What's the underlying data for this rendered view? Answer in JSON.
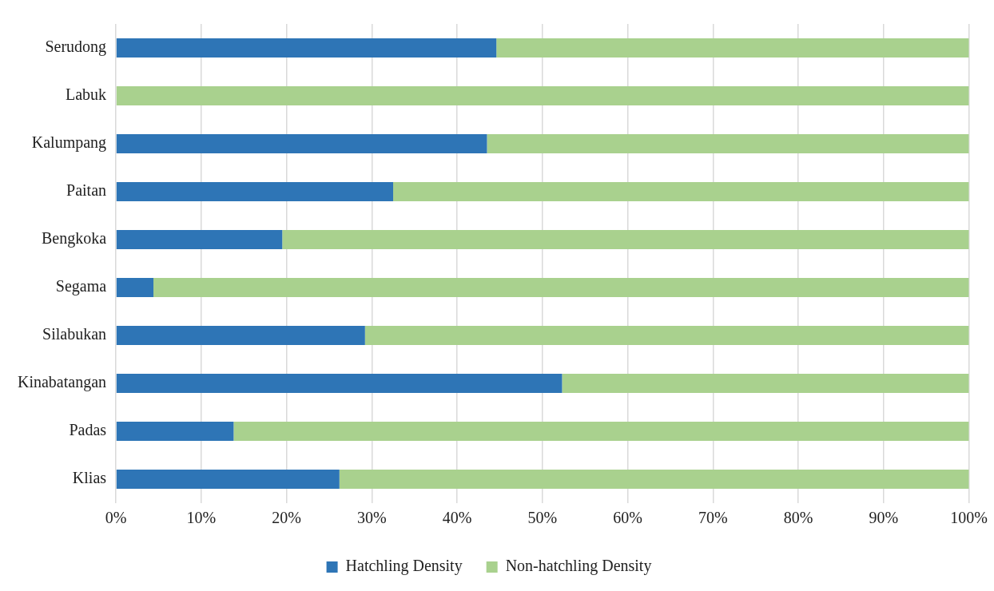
{
  "chart_data": {
    "type": "bar",
    "orientation": "horizontal",
    "stacked": true,
    "categories": [
      "Serudong",
      "Labuk",
      "Kalumpang",
      "Paitan",
      "Bengkoka",
      "Segama",
      "Silabukan",
      "Kinabatangan",
      "Padas",
      "Klias"
    ],
    "series": [
      {
        "name": "Hatchling Density",
        "color": "#2e75b6",
        "values": [
          44.6,
          0,
          43.5,
          32.5,
          19.5,
          4.4,
          29.2,
          52.3,
          13.8,
          26.2
        ]
      },
      {
        "name": "Non-hatchling Density",
        "color": "#a9d18e",
        "values": [
          55.4,
          100,
          56.5,
          67.5,
          80.5,
          95.6,
          70.8,
          47.7,
          86.2,
          73.8
        ]
      }
    ],
    "xlim": [
      0,
      100
    ],
    "xticks": [
      {
        "value": 0,
        "label": "0%"
      },
      {
        "value": 10,
        "label": "10%"
      },
      {
        "value": 20,
        "label": "20%"
      },
      {
        "value": 30,
        "label": "30%"
      },
      {
        "value": 40,
        "label": "40%"
      },
      {
        "value": 50,
        "label": "50%"
      },
      {
        "value": 60,
        "label": "60%"
      },
      {
        "value": 70,
        "label": "70%"
      },
      {
        "value": 80,
        "label": "80%"
      },
      {
        "value": 90,
        "label": "90%"
      },
      {
        "value": 100,
        "label": "100%"
      }
    ],
    "grid": "x",
    "legend": "bottom"
  }
}
